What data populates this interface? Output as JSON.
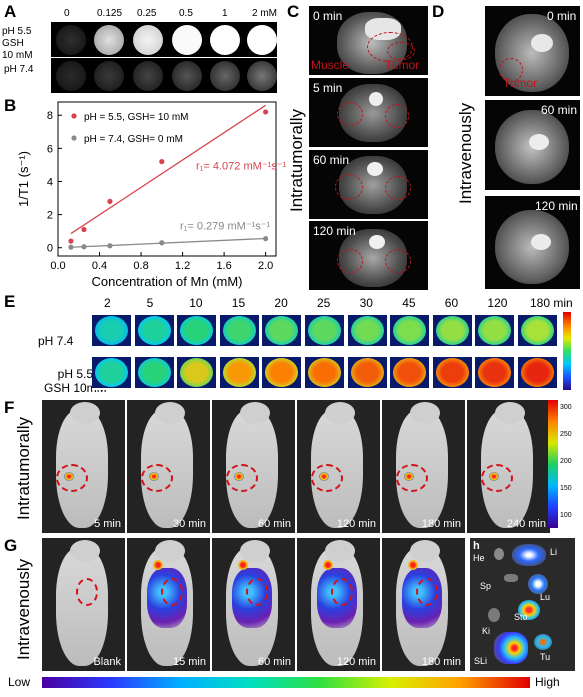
{
  "panel_labels": {
    "a": "A",
    "b": "B",
    "c": "C",
    "d": "D",
    "e": "E",
    "f": "F",
    "g": "G",
    "h": "h"
  },
  "panelA": {
    "concentrations": [
      "0",
      "0.125",
      "0.25",
      "0.5",
      "1",
      "2 mM"
    ],
    "row1_label_l1": "pH 5.5",
    "row1_label_l2": "GSH",
    "row1_label_l3": "10 mM",
    "row2_label": "pH 7.4"
  },
  "chart_data": {
    "type": "scatter",
    "xlabel": "Concentration of Mn (mM)",
    "ylabel": "1/T1 (s⁻¹)",
    "xlim": [
      0,
      2.1
    ],
    "ylim": [
      -0.5,
      8.8
    ],
    "xticks": [
      "0.0",
      "0.4",
      "0.8",
      "1.2",
      "1.6",
      "2.0"
    ],
    "yticks": [
      "0",
      "2",
      "4",
      "6",
      "8"
    ],
    "legend_position": "top-left",
    "series": [
      {
        "name": "pH = 5.5, GSH= 10 mM",
        "color": "#d9434f",
        "x": [
          0.125,
          0.25,
          0.5,
          1.0,
          2.0
        ],
        "y": [
          0.4,
          1.1,
          2.8,
          5.2,
          8.2
        ],
        "fit_label": "r₁= 4.072 mM⁻¹s⁻¹"
      },
      {
        "name": "pH = 7.4, GSH= 0 mM",
        "color": "#8a8a8a",
        "x": [
          0.125,
          0.25,
          0.5,
          1.0,
          2.0
        ],
        "y": [
          0.03,
          0.06,
          0.12,
          0.3,
          0.55
        ],
        "fit_label": "r₁= 0.279 mM⁻¹s⁻¹"
      }
    ]
  },
  "panelC": {
    "side_label": "Intratumorally",
    "times": [
      "0 min",
      "5 min",
      "60 min",
      "120 min"
    ],
    "muscle": "Muscle",
    "tumor": "Tumor"
  },
  "panelD": {
    "side_label": "Intravenously",
    "times": [
      "0 min",
      "60 min",
      "120 min"
    ],
    "tumor": "Tumor"
  },
  "panelE": {
    "times": [
      "2",
      "5",
      "10",
      "15",
      "20",
      "25",
      "30",
      "45",
      "60",
      "120",
      "180 min"
    ],
    "row1_label": "pH 7.4",
    "row2_label_l1": "pH 5.5",
    "row2_label_l2": "GSH 10mM",
    "row1_intensity": [
      0.42,
      0.45,
      0.5,
      0.52,
      0.55,
      0.55,
      0.57,
      0.58,
      0.6,
      0.6,
      0.62
    ],
    "row2_intensity": [
      0.45,
      0.5,
      0.7,
      0.78,
      0.82,
      0.85,
      0.88,
      0.9,
      0.93,
      0.95,
      0.97
    ]
  },
  "panelF": {
    "side_label": "Intratumorally",
    "times": [
      "5 min",
      "30 min",
      "60 min",
      "120 min",
      "180 min",
      "240 min"
    ],
    "scale_ticks": [
      "300",
      "250",
      "200",
      "150",
      "100"
    ]
  },
  "panelG": {
    "side_label": "Intravenously",
    "times": [
      "Blank",
      "15 min",
      "60 min",
      "120 min",
      "180 min"
    ]
  },
  "panelH": {
    "organs": [
      "He",
      "Li",
      "Sp",
      "Lu",
      "Ki",
      "Sto",
      "SLi",
      "Tu"
    ]
  },
  "colorbar": {
    "low": "Low",
    "high": "High"
  }
}
